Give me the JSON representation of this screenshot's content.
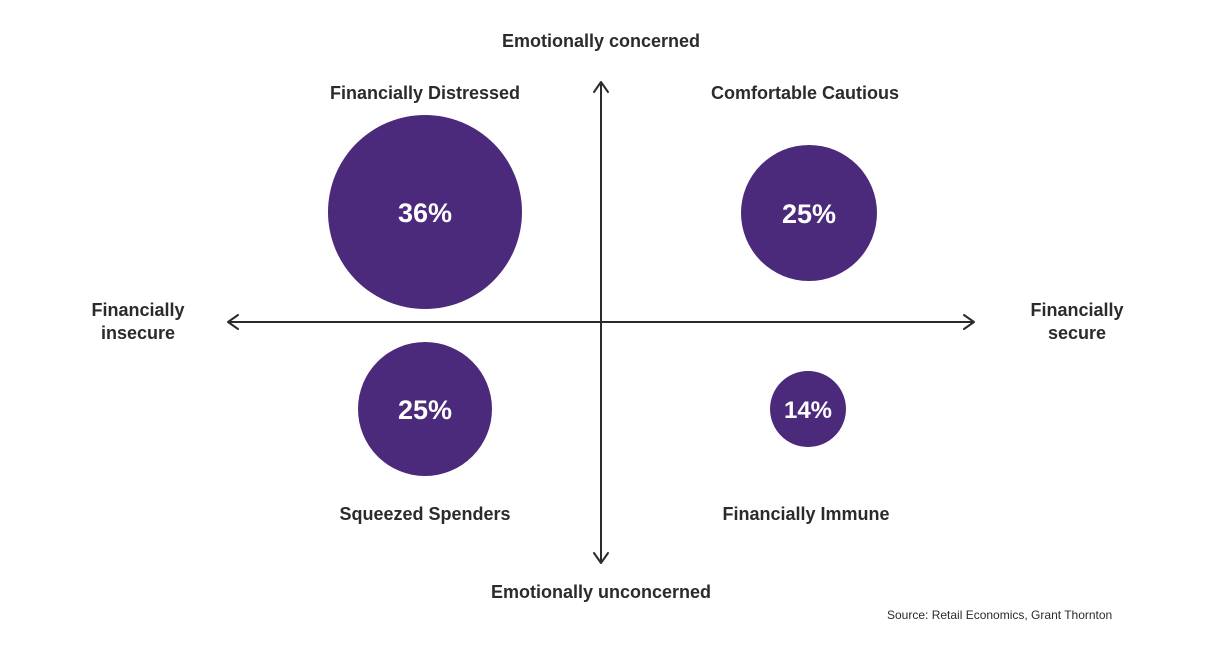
{
  "axes": {
    "top": "Emotionally concerned",
    "bottom": "Emotionally unconcerned",
    "left_line1": "Financially",
    "left_line2": "insecure",
    "right_line1": "Financially",
    "right_line2": "secure"
  },
  "segments": [
    {
      "name": "Financially Distressed",
      "value_label": "36%",
      "value": 36,
      "quadrant": "top-left"
    },
    {
      "name": "Comfortable Cautious",
      "value_label": "25%",
      "value": 25,
      "quadrant": "top-right"
    },
    {
      "name": "Squeezed Spenders",
      "value_label": "25%",
      "value": 25,
      "quadrant": "bottom-left"
    },
    {
      "name": "Financially Immune",
      "value_label": "14%",
      "value": 14,
      "quadrant": "bottom-right"
    }
  ],
  "colors": {
    "bubble": "#4b2a7b",
    "text": "#2b2b2b",
    "bubble_text": "#ffffff"
  },
  "source": "Source: Retail Economics, Grant Thornton"
}
